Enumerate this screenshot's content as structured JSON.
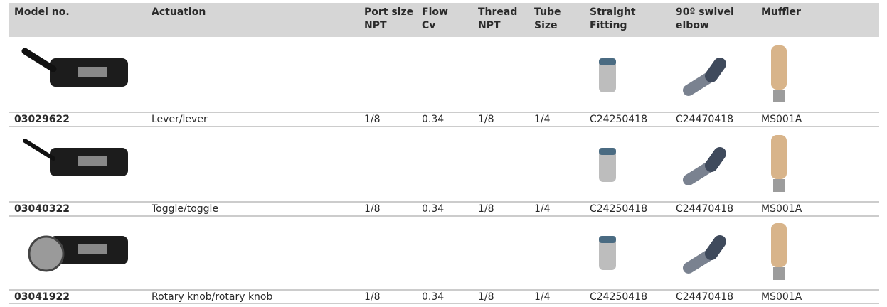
{
  "table": {
    "headers": [
      [
        "Model no."
      ],
      [
        "Actuation"
      ],
      [
        "Port size",
        "NPT"
      ],
      [
        "Flow",
        "Cv"
      ],
      [
        "Thread",
        "NPT"
      ],
      [
        "Tube",
        "Size"
      ],
      [
        "Straight",
        "Fitting"
      ],
      [
        "90º swivel",
        "elbow"
      ],
      [
        "Muffler"
      ]
    ],
    "rows": [
      [
        "03029622",
        "Lever/lever",
        "1/8",
        "0.34",
        "1/8",
        "1/4",
        "C24250418",
        "C24470418",
        "MS001A"
      ],
      [
        "03040322",
        "Toggle/toggle",
        "1/8",
        "0.34",
        "1/8",
        "1/4",
        "C24250418",
        "C24470418",
        "MS001A"
      ],
      [
        "03041922",
        "Rotary knob/rotary knob",
        "1/8",
        "0.34",
        "1/8",
        "1/4",
        "C24250418",
        "C24470418",
        "MS001A"
      ]
    ]
  }
}
